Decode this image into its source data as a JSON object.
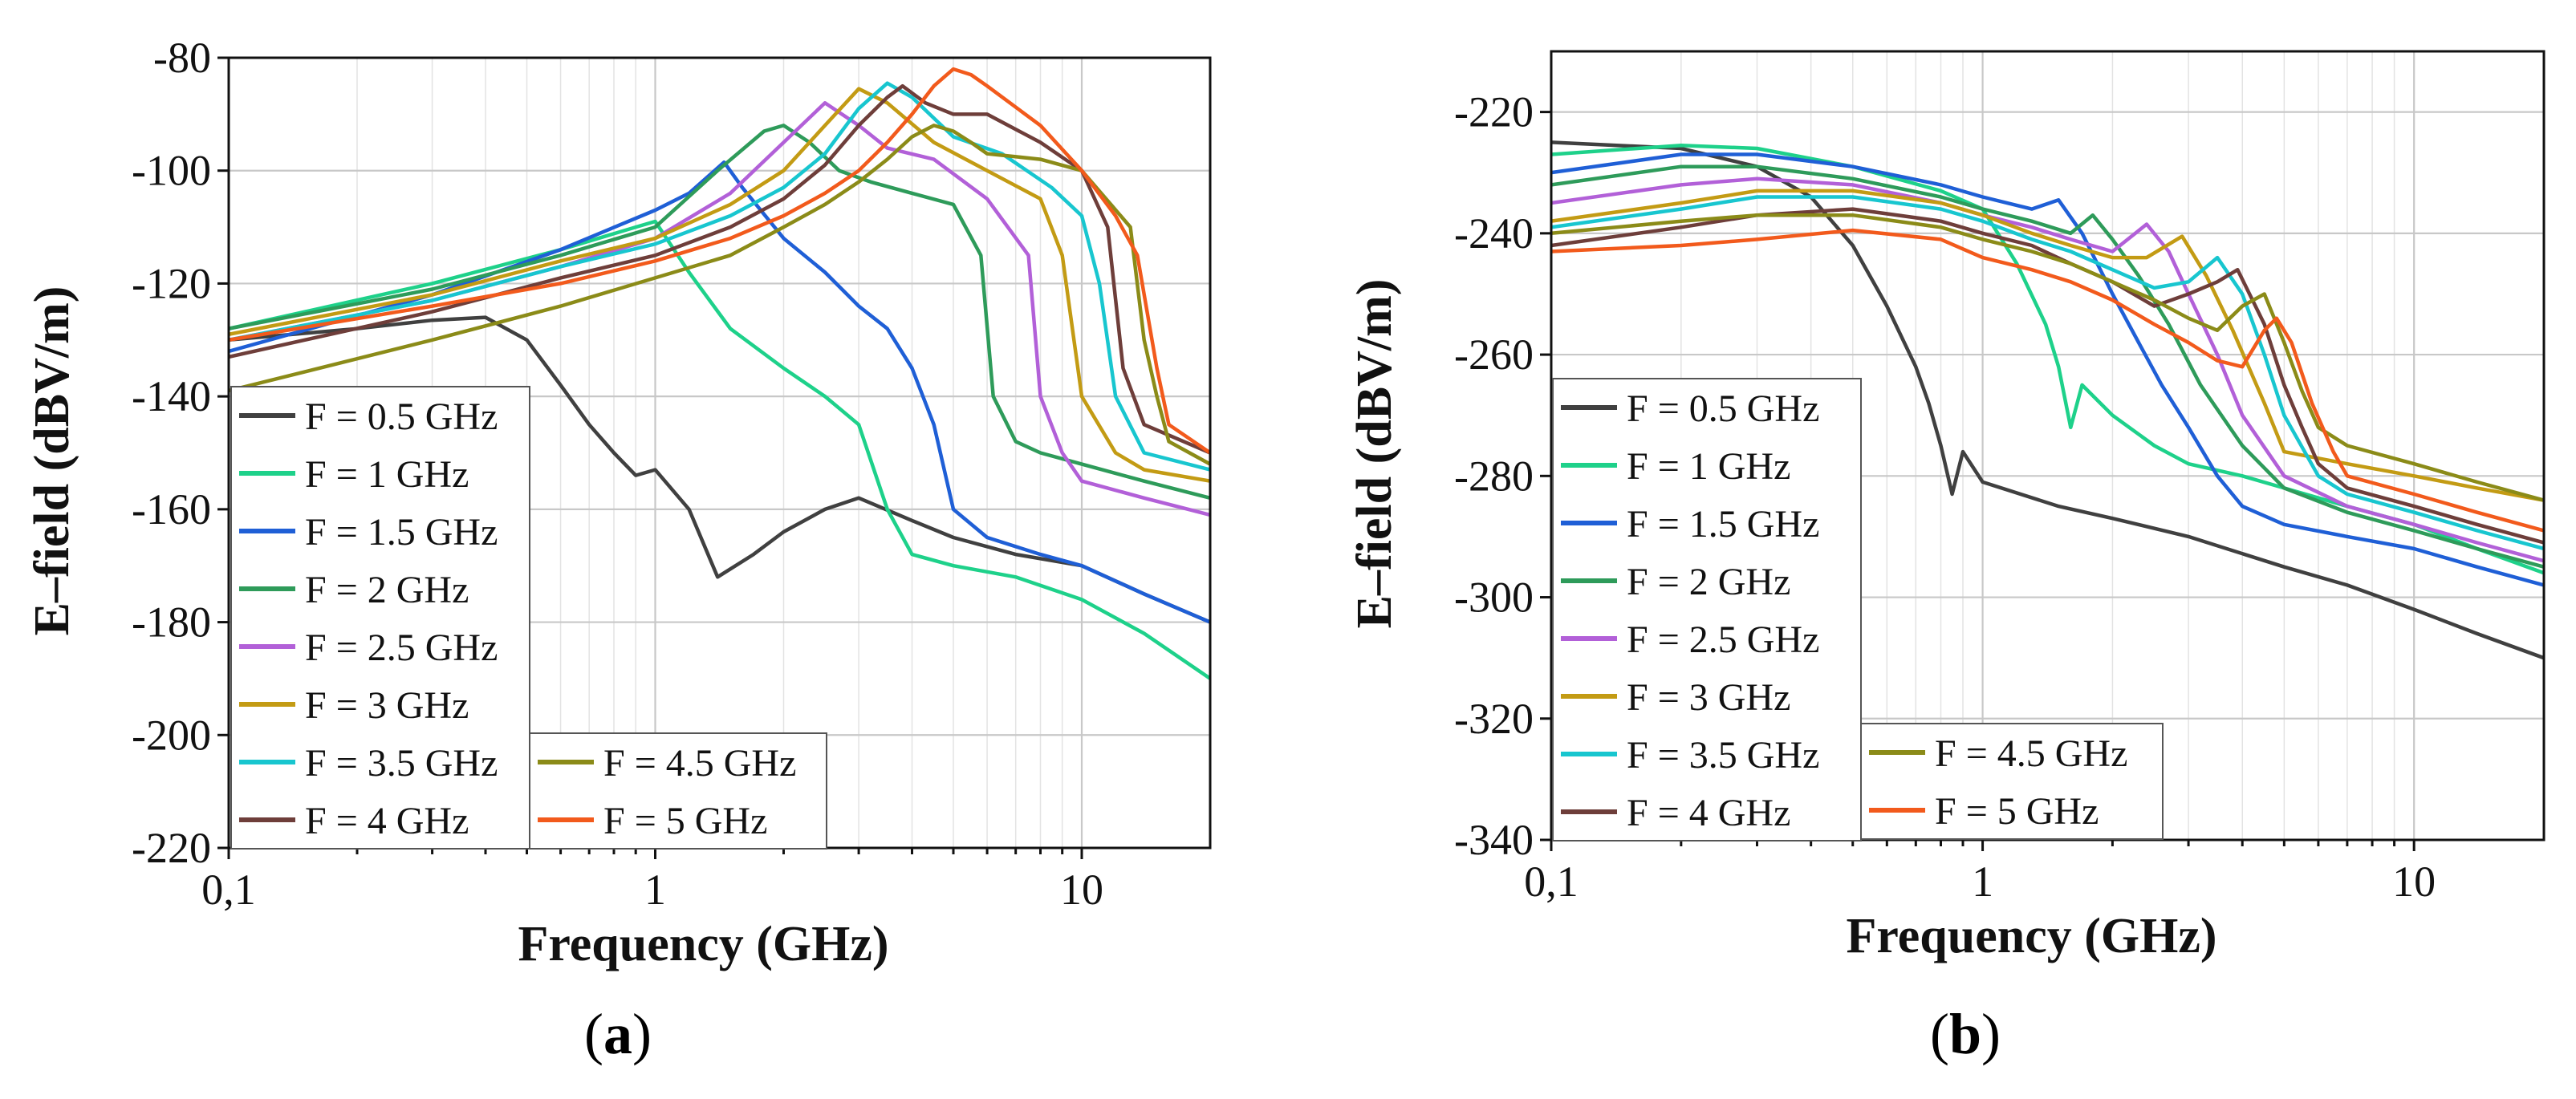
{
  "panel_labels": {
    "a": {
      "open": "(",
      "letter": "a",
      "close": ")"
    },
    "b": {
      "open": "(",
      "letter": "b",
      "close": ")"
    }
  },
  "chart_data": [
    {
      "type": "line",
      "panel": "a",
      "xlabel": "Frequency (GHz)",
      "ylabel": "E–field (dBV/m)",
      "xscale": "log",
      "xlim": [
        0.1,
        20
      ],
      "ylim": [
        -220,
        -80
      ],
      "x_ticks": [
        {
          "value": 0.1,
          "label": "0,1"
        },
        {
          "value": 1,
          "label": "1"
        },
        {
          "value": 10,
          "label": "10"
        }
      ],
      "y_ticks": [
        {
          "value": -80,
          "label": "-80"
        },
        {
          "value": -100,
          "label": "-100"
        },
        {
          "value": -120,
          "label": "-120"
        },
        {
          "value": -140,
          "label": "-140"
        },
        {
          "value": -160,
          "label": "-160"
        },
        {
          "value": -180,
          "label": "-180"
        },
        {
          "value": -200,
          "label": "-200"
        },
        {
          "value": -220,
          "label": "-220"
        }
      ],
      "grid": true,
      "legend_position": "bottom-left",
      "series": [
        {
          "name": "F = 0.5 GHz",
          "color": "#404040",
          "x": [
            0.1,
            0.2,
            0.3,
            0.4,
            0.5,
            0.6,
            0.7,
            0.8,
            0.9,
            1.0,
            1.2,
            1.4,
            1.7,
            2.0,
            2.5,
            3.0,
            4.0,
            5.0,
            7.0,
            10.0,
            14.0,
            20.0
          ],
          "y": [
            -130,
            -128,
            -126.5,
            -126,
            -130,
            -138,
            -145,
            -150,
            -154,
            -153,
            -160,
            -172,
            -168,
            -164,
            -160,
            -158,
            -162,
            -165,
            -168,
            -170,
            -175,
            -180
          ]
        },
        {
          "name": "F = 1 GHz",
          "color": "#1ed18a",
          "x": [
            0.1,
            0.3,
            0.6,
            0.9,
            1.0,
            1.2,
            1.5,
            2.0,
            2.5,
            3.0,
            3.5,
            4.0,
            5.0,
            7.0,
            10.0,
            14.0,
            20.0
          ],
          "y": [
            -128,
            -120,
            -114,
            -110,
            -109,
            -118,
            -128,
            -135,
            -140,
            -145,
            -160,
            -168,
            -170,
            -172,
            -176,
            -182,
            -190
          ]
        },
        {
          "name": "F = 1.5 GHz",
          "color": "#1f5fd6",
          "x": [
            0.1,
            0.3,
            0.6,
            1.0,
            1.2,
            1.45,
            1.6,
            2.0,
            2.5,
            3.0,
            3.5,
            4.0,
            4.5,
            5.0,
            6.0,
            8.0,
            10.0,
            14.0,
            20.0
          ],
          "y": [
            -132,
            -122,
            -114,
            -107,
            -104,
            -98.5,
            -103,
            -112,
            -118,
            -124,
            -128,
            -135,
            -145,
            -160,
            -165,
            -168,
            -170,
            -175,
            -180
          ]
        },
        {
          "name": "F = 2 GHz",
          "color": "#2e9b5a",
          "x": [
            0.1,
            0.3,
            0.6,
            1.0,
            1.4,
            1.8,
            2.0,
            2.3,
            2.7,
            3.2,
            4.0,
            5.0,
            5.8,
            6.2,
            7.0,
            8.0,
            10.0,
            14.0,
            20.0
          ],
          "y": [
            -128,
            -121,
            -115,
            -110,
            -100,
            -93,
            -92,
            -95,
            -100,
            -102,
            -104,
            -106,
            -115,
            -140,
            -148,
            -150,
            -152,
            -155,
            -158
          ]
        },
        {
          "name": "F = 2.5 GHz",
          "color": "#b260d8",
          "x": [
            0.1,
            0.3,
            0.6,
            1.0,
            1.5,
            2.0,
            2.5,
            3.0,
            3.5,
            4.5,
            6.0,
            7.5,
            8.0,
            9.0,
            10.0,
            14.0,
            20.0
          ],
          "y": [
            -130,
            -123,
            -117,
            -112,
            -104,
            -95,
            -88,
            -92,
            -96,
            -98,
            -105,
            -115,
            -140,
            -150,
            -155,
            -158,
            -161
          ]
        },
        {
          "name": "F = 3 GHz",
          "color": "#c39b14",
          "x": [
            0.1,
            0.3,
            0.6,
            1.0,
            1.5,
            2.0,
            2.5,
            3.0,
            3.5,
            4.5,
            6.0,
            8.0,
            9.0,
            10.0,
            12.0,
            14.0,
            20.0
          ],
          "y": [
            -129,
            -122,
            -116,
            -112,
            -106,
            -100,
            -92,
            -85.5,
            -88,
            -95,
            -100,
            -105,
            -115,
            -140,
            -150,
            -153,
            -155
          ]
        },
        {
          "name": "F = 3.5 GHz",
          "color": "#18c6cf",
          "x": [
            0.1,
            0.3,
            0.6,
            1.0,
            1.5,
            2.0,
            2.5,
            3.0,
            3.5,
            4.0,
            5.0,
            6.5,
            8.5,
            10.0,
            11.0,
            12.0,
            14.0,
            20.0
          ],
          "y": [
            -130,
            -123,
            -117,
            -113,
            -108,
            -103,
            -97,
            -89,
            -84.5,
            -87,
            -94,
            -97,
            -103,
            -108,
            -120,
            -140,
            -150,
            -153
          ]
        },
        {
          "name": "F = 4 GHz",
          "color": "#6e3e3a",
          "x": [
            0.1,
            0.3,
            0.6,
            1.0,
            1.5,
            2.0,
            2.5,
            3.0,
            3.5,
            3.8,
            4.3,
            5.0,
            6.0,
            8.0,
            10.0,
            11.5,
            12.5,
            14.0,
            20.0
          ],
          "y": [
            -133,
            -125,
            -119,
            -115,
            -110,
            -105,
            -99,
            -92,
            -87,
            -85,
            -88,
            -90,
            -90,
            -95,
            -100,
            -110,
            -135,
            -145,
            -150
          ]
        },
        {
          "name": "F = 4.5 GHz",
          "color": "#8b8b18",
          "x": [
            0.1,
            0.3,
            0.6,
            1.0,
            1.5,
            2.0,
            2.5,
            3.0,
            3.5,
            4.0,
            4.5,
            5.0,
            5.5,
            6.0,
            8.0,
            10.0,
            13.0,
            14.0,
            15.0,
            16.0,
            20.0
          ],
          "y": [
            -139,
            -130,
            -124,
            -119,
            -115,
            -110,
            -106,
            -102,
            -98,
            -94,
            -92,
            -93,
            -95,
            -97,
            -98,
            -100,
            -110,
            -130,
            -140,
            -148,
            -152
          ]
        },
        {
          "name": "F = 5 GHz",
          "color": "#f25a1c",
          "x": [
            0.1,
            0.3,
            0.6,
            1.0,
            1.5,
            2.0,
            2.5,
            3.0,
            3.5,
            4.0,
            4.5,
            5.0,
            5.5,
            6.0,
            8.0,
            10.0,
            12.0,
            13.5,
            15.0,
            16.0,
            20.0
          ],
          "y": [
            -130,
            -124,
            -120,
            -116,
            -112,
            -108,
            -104,
            -100,
            -95,
            -90,
            -85,
            -82,
            -83,
            -85,
            -92,
            -100,
            -108,
            -115,
            -135,
            -145,
            -150
          ]
        }
      ]
    },
    {
      "type": "line",
      "panel": "b",
      "xlabel": "Frequency (GHz)",
      "ylabel": "E–field (dBV/m)",
      "xscale": "log",
      "xlim": [
        0.1,
        20
      ],
      "ylim": [
        -340,
        -210
      ],
      "x_ticks": [
        {
          "value": 0.1,
          "label": "0,1"
        },
        {
          "value": 1,
          "label": "1"
        },
        {
          "value": 10,
          "label": "10"
        }
      ],
      "y_ticks": [
        {
          "value": -220,
          "label": "-220"
        },
        {
          "value": -240,
          "label": "-240"
        },
        {
          "value": -260,
          "label": "-260"
        },
        {
          "value": -280,
          "label": "-280"
        },
        {
          "value": -300,
          "label": "-300"
        },
        {
          "value": -320,
          "label": "-320"
        },
        {
          "value": -340,
          "label": "-340"
        }
      ],
      "grid": true,
      "legend_position": "bottom-left",
      "series": [
        {
          "name": "F = 0.5 GHz",
          "color": "#404040",
          "x": [
            0.1,
            0.2,
            0.3,
            0.4,
            0.5,
            0.6,
            0.7,
            0.75,
            0.8,
            0.85,
            0.9,
            1.0,
            1.5,
            2.0,
            3.0,
            5.0,
            7.0,
            10.0,
            14.0,
            20.0
          ],
          "y": [
            -225,
            -226,
            -229,
            -234,
            -242,
            -252,
            -262,
            -268,
            -275,
            -283,
            -276,
            -281,
            -285,
            -287,
            -290,
            -295,
            -298,
            -302,
            -306,
            -310
          ]
        },
        {
          "name": "F = 1 GHz",
          "color": "#1ed18a",
          "x": [
            0.1,
            0.2,
            0.3,
            0.5,
            0.8,
            1.0,
            1.2,
            1.4,
            1.5,
            1.6,
            1.7,
            2.0,
            2.5,
            3.0,
            4.0,
            5.0,
            7.0,
            10.0,
            14.0,
            20.0
          ],
          "y": [
            -227,
            -225.5,
            -226,
            -229,
            -233,
            -236,
            -245,
            -255,
            -262,
            -272,
            -265,
            -270,
            -275,
            -278,
            -280,
            -282,
            -285,
            -288,
            -292,
            -296
          ]
        },
        {
          "name": "F = 1.5 GHz",
          "color": "#1f5fd6",
          "x": [
            0.1,
            0.2,
            0.3,
            0.5,
            0.8,
            1.0,
            1.3,
            1.5,
            1.7,
            2.0,
            2.3,
            2.6,
            3.0,
            3.5,
            4.0,
            5.0,
            7.0,
            10.0,
            14.0,
            20.0
          ],
          "y": [
            -230,
            -227,
            -227,
            -229,
            -232,
            -234,
            -236,
            -234.5,
            -240,
            -250,
            -258,
            -265,
            -272,
            -280,
            -285,
            -288,
            -290,
            -292,
            -295,
            -298
          ]
        },
        {
          "name": "F = 2 GHz",
          "color": "#2e9b5a",
          "x": [
            0.1,
            0.2,
            0.3,
            0.5,
            0.8,
            1.0,
            1.3,
            1.6,
            1.8,
            2.0,
            2.3,
            2.7,
            3.2,
            4.0,
            5.0,
            7.0,
            10.0,
            14.0,
            20.0
          ],
          "y": [
            -232,
            -229,
            -229,
            -231,
            -234,
            -236,
            -238,
            -240,
            -237,
            -241,
            -247,
            -255,
            -265,
            -275,
            -282,
            -286,
            -289,
            -292,
            -295
          ]
        },
        {
          "name": "F = 2.5 GHz",
          "color": "#b260d8",
          "x": [
            0.1,
            0.2,
            0.3,
            0.5,
            0.8,
            1.0,
            1.3,
            1.6,
            2.0,
            2.4,
            2.7,
            3.0,
            3.5,
            4.0,
            5.0,
            7.0,
            10.0,
            14.0,
            20.0
          ],
          "y": [
            -235,
            -232,
            -231,
            -232,
            -235,
            -237,
            -239,
            -241,
            -243,
            -238.5,
            -243,
            -250,
            -260,
            -270,
            -280,
            -285,
            -288,
            -291,
            -294
          ]
        },
        {
          "name": "F = 3 GHz",
          "color": "#c39b14",
          "x": [
            0.1,
            0.2,
            0.3,
            0.5,
            0.8,
            1.0,
            1.3,
            1.6,
            2.0,
            2.4,
            2.9,
            3.3,
            3.8,
            4.5,
            5.0,
            7.0,
            10.0,
            14.0,
            20.0
          ],
          "y": [
            -238,
            -235,
            -233,
            -233,
            -235,
            -237,
            -240,
            -242,
            -244,
            -244,
            -240.5,
            -247,
            -256,
            -268,
            -276,
            -278,
            -280,
            -282,
            -284
          ]
        },
        {
          "name": "F = 3.5 GHz",
          "color": "#18c6cf",
          "x": [
            0.1,
            0.2,
            0.3,
            0.5,
            0.8,
            1.0,
            1.3,
            1.6,
            2.0,
            2.5,
            3.0,
            3.5,
            4.0,
            4.5,
            5.0,
            6.0,
            7.0,
            10.0,
            14.0,
            20.0
          ],
          "y": [
            -239,
            -236,
            -234,
            -234,
            -236,
            -238,
            -241,
            -243,
            -246,
            -249,
            -248,
            -244,
            -250,
            -260,
            -270,
            -280,
            -283,
            -286,
            -289,
            -292
          ]
        },
        {
          "name": "F = 4 GHz",
          "color": "#6e3e3a",
          "x": [
            0.1,
            0.2,
            0.3,
            0.5,
            0.8,
            1.0,
            1.3,
            1.6,
            2.0,
            2.5,
            3.0,
            3.5,
            3.9,
            4.5,
            5.0,
            5.5,
            6.0,
            7.0,
            10.0,
            14.0,
            20.0
          ],
          "y": [
            -242,
            -239,
            -237,
            -236,
            -238,
            -240,
            -242,
            -245,
            -248,
            -252,
            -250,
            -248,
            -246,
            -255,
            -265,
            -272,
            -278,
            -282,
            -285,
            -288,
            -291
          ]
        },
        {
          "name": "F = 4.5 GHz",
          "color": "#8b8b18",
          "x": [
            0.1,
            0.2,
            0.3,
            0.5,
            0.8,
            1.0,
            1.3,
            1.6,
            2.0,
            2.5,
            3.0,
            3.5,
            4.0,
            4.5,
            5.0,
            5.5,
            6.0,
            7.0,
            10.0,
            14.0,
            20.0
          ],
          "y": [
            -240,
            -238,
            -237,
            -237,
            -239,
            -241,
            -243,
            -245,
            -248,
            -251,
            -254,
            -256,
            -252,
            -250,
            -258,
            -266,
            -272,
            -275,
            -278,
            -281,
            -284
          ]
        },
        {
          "name": "F = 5 GHz",
          "color": "#f25a1c",
          "x": [
            0.1,
            0.2,
            0.3,
            0.5,
            0.8,
            1.0,
            1.3,
            1.6,
            2.0,
            2.5,
            3.0,
            3.5,
            4.0,
            4.5,
            4.8,
            5.2,
            5.8,
            6.5,
            7.0,
            10.0,
            14.0,
            20.0
          ],
          "y": [
            -243,
            -242,
            -241,
            -239.5,
            -241,
            -244,
            -246,
            -248,
            -251,
            -255,
            -258,
            -261,
            -262,
            -256,
            -254,
            -258,
            -268,
            -276,
            -280,
            -283,
            -286,
            -289
          ]
        }
      ]
    }
  ]
}
